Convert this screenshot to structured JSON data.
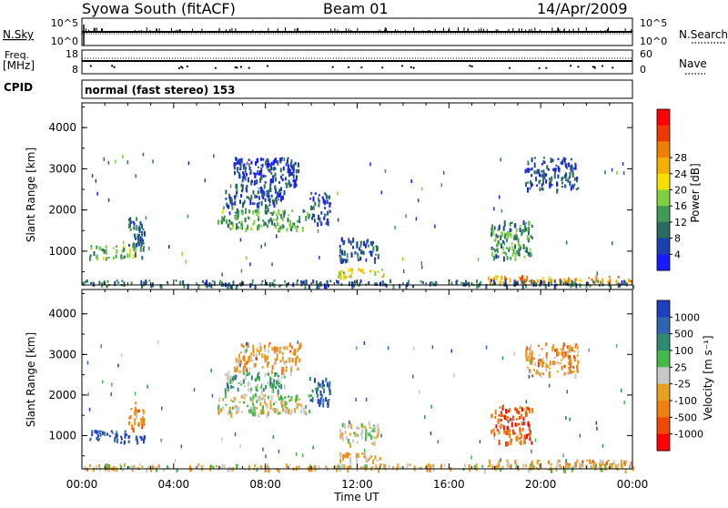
{
  "header": {
    "station": "Syowa South (fitACF)",
    "beam": "Beam 01",
    "date": "14/Apr/2009"
  },
  "strips": {
    "nsky_label": "N.Sky",
    "nsky_ticks": [
      "10^5",
      "10^0"
    ],
    "nsearch_label": "N.Search",
    "nsearch_ticks": [
      "10^5",
      "10^0"
    ],
    "freq_label_1": "Freq.",
    "freq_label_2": "[MHz]",
    "freq_ticks": [
      "18",
      "8"
    ],
    "nave_label": "Nave",
    "nave_ticks": [
      "60",
      "0"
    ],
    "cpid_label": "CPID",
    "cpid_text": "normal (fast stereo) 153"
  },
  "axes": {
    "ylabel": "Slant Range [km]",
    "xlabel": "Time UT",
    "yticks": [
      "1000",
      "2000",
      "3000",
      "4000"
    ],
    "xticks": [
      "00:00",
      "04:00",
      "08:00",
      "12:00",
      "16:00",
      "20:00",
      "00:00"
    ]
  },
  "power_scale": {
    "label": "Power [dB]",
    "ticks": [
      "4",
      "8",
      "12",
      "16",
      "20",
      "24",
      "28"
    ],
    "colors": [
      "#1a1aff",
      "#1c3fb0",
      "#2a6b60",
      "#3f9a55",
      "#7fd040",
      "#f5e000",
      "#f3b000",
      "#f08000",
      "#ee3800",
      "#ff0000"
    ]
  },
  "velocity_scale": {
    "label": "Velocity [m s⁻¹]",
    "ticks": [
      "1000",
      "500",
      "100",
      "25",
      "-25",
      "-100",
      "-500",
      "-1000"
    ],
    "colors": [
      "#1e40c0",
      "#2e64b0",
      "#2e8a70",
      "#44b848",
      "#c8c8c8",
      "#e8a020",
      "#f08010",
      "#f04800",
      "#ff0000"
    ]
  },
  "chart_data": [
    {
      "type": "heatmap",
      "panel": "power",
      "xlabel": "Time UT",
      "ylabel": "Slant Range [km]",
      "xlim": [
        0,
        24
      ],
      "ylim": [
        180,
        4600
      ],
      "colorbar": {
        "label": "Power [dB]",
        "ticks": [
          4,
          8,
          12,
          16,
          20,
          24,
          28
        ]
      },
      "regions": [
        {
          "t": [
            0.3,
            2.7
          ],
          "r": [
            850,
            1150
          ],
          "level": 0.35
        },
        {
          "t": [
            2.0,
            2.7
          ],
          "r": [
            1150,
            1850
          ],
          "level": 0.2
        },
        {
          "t": [
            5.9,
            9.9
          ],
          "r": [
            1550,
            2050
          ],
          "level": 0.35
        },
        {
          "t": [
            6.2,
            8.8
          ],
          "r": [
            2100,
            2600
          ],
          "level": 0.15
        },
        {
          "t": [
            6.6,
            9.5
          ],
          "r": [
            2600,
            3300
          ],
          "level": 0.1
        },
        {
          "t": [
            9.9,
            10.8
          ],
          "r": [
            1700,
            2450
          ],
          "level": 0.12
        },
        {
          "t": [
            11.2,
            12.9
          ],
          "r": [
            800,
            1350
          ],
          "level": 0.18
        },
        {
          "t": [
            11.1,
            13.1
          ],
          "r": [
            400,
            600
          ],
          "level": 0.55
        },
        {
          "t": [
            17.8,
            19.6
          ],
          "r": [
            850,
            1750
          ],
          "level": 0.3
        },
        {
          "t": [
            19.3,
            21.6
          ],
          "r": [
            2500,
            3300
          ],
          "level": 0.12
        },
        {
          "t": [
            17.6,
            24.0
          ],
          "r": [
            260,
            420
          ],
          "level": 0.75
        },
        {
          "t": [
            0.0,
            24.0
          ],
          "r": [
            180,
            320
          ],
          "level": 0.2
        }
      ]
    },
    {
      "type": "heatmap",
      "panel": "velocity",
      "xlabel": "Time UT",
      "ylabel": "Slant Range [km]",
      "xlim": [
        0,
        24
      ],
      "ylim": [
        180,
        4600
      ],
      "colorbar": {
        "label": "Velocity [m s⁻¹]",
        "ticks": [
          1000,
          500,
          100,
          25,
          -25,
          -100,
          -500,
          -1000
        ]
      },
      "regions": [
        {
          "t": [
            0.3,
            2.7
          ],
          "r": [
            850,
            1150
          ],
          "level": 0.05
        },
        {
          "t": [
            2.0,
            2.7
          ],
          "r": [
            1150,
            1850
          ],
          "level": 0.7
        },
        {
          "t": [
            5.9,
            9.9
          ],
          "r": [
            1550,
            2050
          ],
          "level": 0.5
        },
        {
          "t": [
            6.2,
            8.8
          ],
          "r": [
            2100,
            2600
          ],
          "level": 0.35
        },
        {
          "t": [
            6.6,
            9.5
          ],
          "r": [
            2600,
            3300
          ],
          "level": 0.65
        },
        {
          "t": [
            9.9,
            10.8
          ],
          "r": [
            1700,
            2450
          ],
          "level": 0.1
        },
        {
          "t": [
            11.2,
            12.9
          ],
          "r": [
            800,
            1350
          ],
          "level": 0.5
        },
        {
          "t": [
            11.1,
            13.1
          ],
          "r": [
            400,
            600
          ],
          "level": 0.6
        },
        {
          "t": [
            17.8,
            19.6
          ],
          "r": [
            850,
            1750
          ],
          "level": 0.85
        },
        {
          "t": [
            19.3,
            21.6
          ],
          "r": [
            2500,
            3300
          ],
          "level": 0.7
        },
        {
          "t": [
            17.6,
            24.0
          ],
          "r": [
            260,
            420
          ],
          "level": 0.68
        },
        {
          "t": [
            0.0,
            24.0
          ],
          "r": [
            180,
            320
          ],
          "level": 0.55
        }
      ]
    }
  ]
}
